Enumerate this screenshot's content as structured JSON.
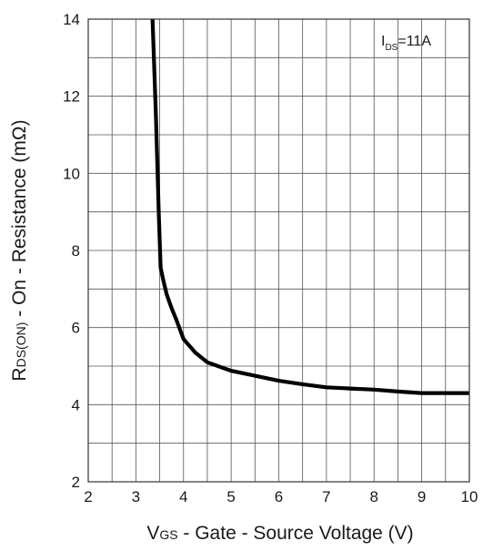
{
  "chart_data": {
    "type": "line",
    "xlabel": {
      "main": "V",
      "sub": "GS",
      "rest": " - Gate - Source Voltage (V)"
    },
    "ylabel": {
      "main": "R",
      "sub": "DS(ON)",
      "rest": " - On - Resistance (mΩ)"
    },
    "annotation": {
      "main": "I",
      "sub": "DS",
      "rest": "=11A"
    },
    "xlim": [
      2,
      10
    ],
    "ylim": [
      2,
      14
    ],
    "x_ticks": [
      "2",
      "3",
      "4",
      "5",
      "6",
      "7",
      "8",
      "9",
      "10"
    ],
    "y_ticks": [
      "2",
      "4",
      "6",
      "8",
      "10",
      "12",
      "14"
    ],
    "grid": true,
    "series": [
      {
        "color": "#000000",
        "x": [
          3.35,
          3.42,
          3.48,
          3.52,
          3.58,
          3.65,
          3.75,
          3.85,
          4.0,
          4.25,
          4.5,
          5.0,
          5.5,
          6.0,
          6.5,
          7.0,
          7.5,
          8.0,
          8.5,
          9.0,
          9.5,
          10.0
        ],
        "y": [
          14.0,
          11.5,
          9.0,
          7.55,
          7.2,
          6.85,
          6.5,
          6.2,
          5.7,
          5.35,
          5.1,
          4.88,
          4.75,
          4.62,
          4.53,
          4.45,
          4.42,
          4.39,
          4.34,
          4.3,
          4.3,
          4.3
        ]
      }
    ]
  }
}
